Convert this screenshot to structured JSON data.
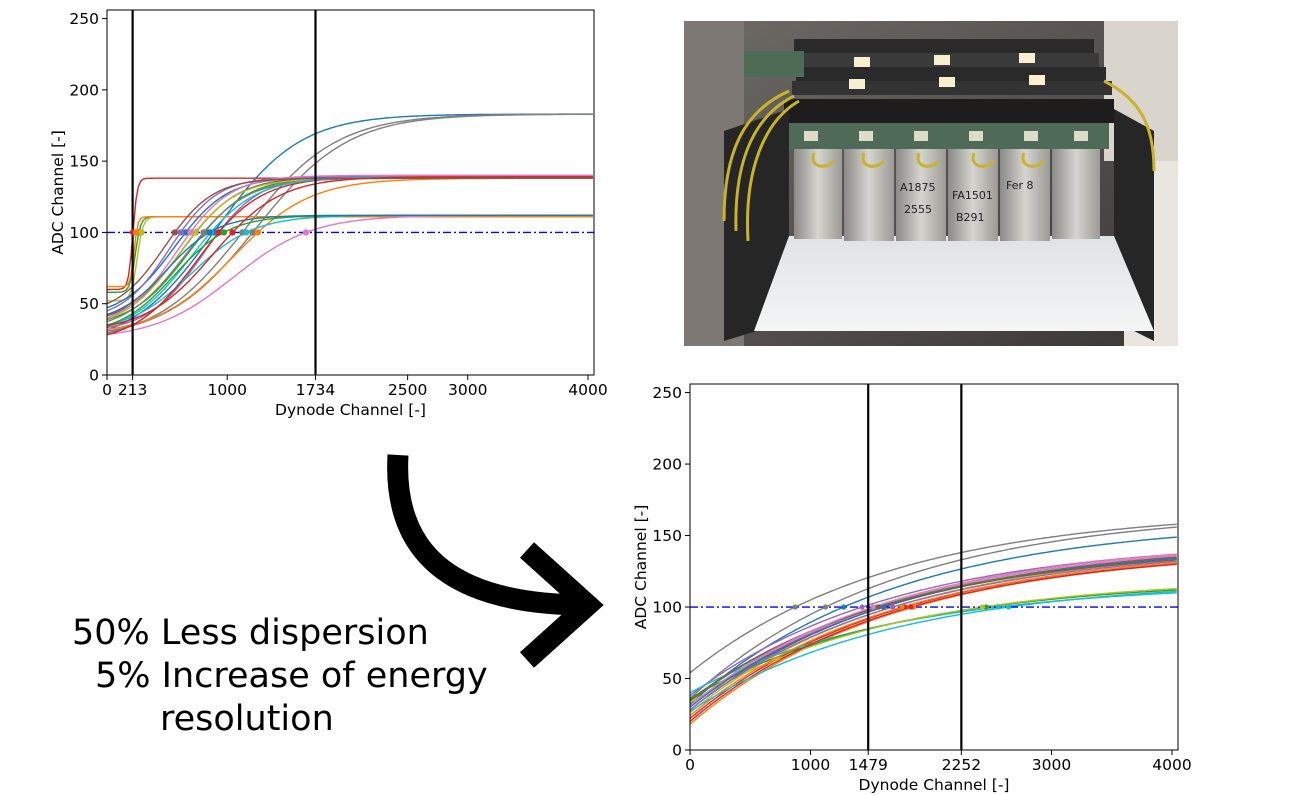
{
  "captions": {
    "line1": "50% Less dispersion",
    "line2": "5% Increase of energy",
    "line3": "resolution"
  },
  "photo": {
    "marker_labels": [
      "A1875",
      "2555",
      "FA1501",
      "B291",
      "Fer 8"
    ]
  },
  "chart_data": [
    {
      "type": "line",
      "xlabel": "Dynode Channel [-]",
      "ylabel": "ADC Channel [-]",
      "xlim": [
        0,
        4050
      ],
      "ylim": [
        0,
        256
      ],
      "xticks": [
        0,
        213,
        1000,
        1734,
        2500,
        3000,
        4000
      ],
      "yticks": [
        0,
        50,
        100,
        150,
        200,
        250
      ],
      "vertical_lines": [
        213,
        1734
      ],
      "reference_line": {
        "y": 100,
        "style": "dash-dot",
        "color": "#0000ff"
      },
      "grid": false,
      "legend": "none",
      "series": [
        {
          "color": "#1f77b4",
          "params": [
            20,
            183,
            900,
            350
          ]
        },
        {
          "color": "#7f7f7f",
          "params": [
            22,
            183,
            1150,
            380
          ]
        },
        {
          "color": "#7f7f7f",
          "params": [
            25,
            183,
            1250,
            380
          ]
        },
        {
          "color": "#d62728",
          "params": [
            60,
            138,
            215,
            18
          ]
        },
        {
          "color": "#2ca02c",
          "params": [
            58,
            111,
            235,
            22
          ]
        },
        {
          "color": "#bcbd22",
          "params": [
            52,
            111,
            250,
            25
          ]
        },
        {
          "color": "#ff7f0e",
          "params": [
            62,
            111,
            225,
            15
          ]
        },
        {
          "color": "#9467bd",
          "params": [
            30,
            140,
            800,
            230
          ]
        },
        {
          "color": "#ff7f0e",
          "params": [
            28,
            138,
            1050,
            320
          ]
        },
        {
          "color": "#17becf",
          "params": [
            30,
            112,
            700,
            260
          ]
        },
        {
          "color": "#e377c2",
          "params": [
            25,
            112,
            1050,
            330
          ]
        },
        {
          "color": "#8c564b",
          "params": [
            35,
            139,
            620,
            230
          ]
        },
        {
          "color": "#2ca02c",
          "params": [
            33,
            139,
            680,
            240
          ]
        },
        {
          "color": "#d62728",
          "params": [
            22,
            139,
            750,
            260
          ]
        },
        {
          "color": "#1f77b4",
          "params": [
            40,
            139,
            560,
            220
          ]
        },
        {
          "color": "#bcbd22",
          "params": [
            32,
            138,
            600,
            230
          ]
        },
        {
          "color": "#9467bd",
          "params": [
            38,
            139,
            520,
            200
          ]
        },
        {
          "color": "#7f7f7f",
          "params": [
            30,
            138,
            650,
            250
          ]
        },
        {
          "color": "#17becf",
          "params": [
            27,
            139,
            700,
            260
          ]
        },
        {
          "color": "#e377c2",
          "params": [
            33,
            140,
            580,
            220
          ]
        },
        {
          "color": "#8c564b",
          "params": [
            42,
            138,
            480,
            200
          ]
        },
        {
          "color": "#2ca02c",
          "params": [
            28,
            112,
            560,
            230
          ]
        },
        {
          "color": "#1f77b4",
          "params": [
            36,
            112,
            500,
            210
          ]
        },
        {
          "color": "#d62728",
          "params": [
            30,
            139,
            880,
            280
          ]
        }
      ]
    },
    {
      "type": "line",
      "xlabel": "Dynode Channel [-]",
      "ylabel": "ADC Channel [-]",
      "xlim": [
        0,
        4050
      ],
      "ylim": [
        0,
        256
      ],
      "xticks": [
        0,
        1000,
        1479,
        2252,
        3000,
        4000
      ],
      "yticks": [
        0,
        50,
        100,
        150,
        200,
        250
      ],
      "vertical_lines": [
        1479,
        2252
      ],
      "reference_line": {
        "y": 100,
        "style": "dash-dot",
        "color": "#0000ff"
      },
      "grid": false,
      "legend": "none",
      "series": [
        {
          "color": "#7f7f7f",
          "params": [
            54,
            158
          ]
        },
        {
          "color": "#7f7f7f",
          "params": [
            36,
            156
          ]
        },
        {
          "color": "#1f77b4",
          "params": [
            32,
            149
          ]
        },
        {
          "color": "#9467bd",
          "params": [
            38,
            137
          ]
        },
        {
          "color": "#e377c2",
          "params": [
            30,
            136
          ]
        },
        {
          "color": "#8c564b",
          "params": [
            28,
            135
          ]
        },
        {
          "color": "#2ca02c",
          "params": [
            34,
            134
          ]
        },
        {
          "color": "#bcbd22",
          "params": [
            26,
            133
          ]
        },
        {
          "color": "#d62728",
          "params": [
            22,
            131
          ]
        },
        {
          "color": "#ff7f0e",
          "params": [
            18,
            130
          ]
        },
        {
          "color": "#17becf",
          "params": [
            40,
            110
          ]
        },
        {
          "color": "#2ca02c",
          "params": [
            36,
            112
          ]
        },
        {
          "color": "#bcbd22",
          "params": [
            33,
            113
          ]
        },
        {
          "color": "#1f77b4",
          "params": [
            30,
            134
          ]
        },
        {
          "color": "#9467bd",
          "params": [
            28,
            132
          ]
        },
        {
          "color": "#ff7f0e",
          "params": [
            24,
            131
          ]
        },
        {
          "color": "#d62728",
          "params": [
            20,
            130
          ]
        },
        {
          "color": "#8c564b",
          "params": [
            35,
            133
          ]
        },
        {
          "color": "#e377c2",
          "params": [
            31,
            137
          ]
        },
        {
          "color": "#17becf",
          "params": [
            27,
            111
          ]
        }
      ]
    }
  ]
}
